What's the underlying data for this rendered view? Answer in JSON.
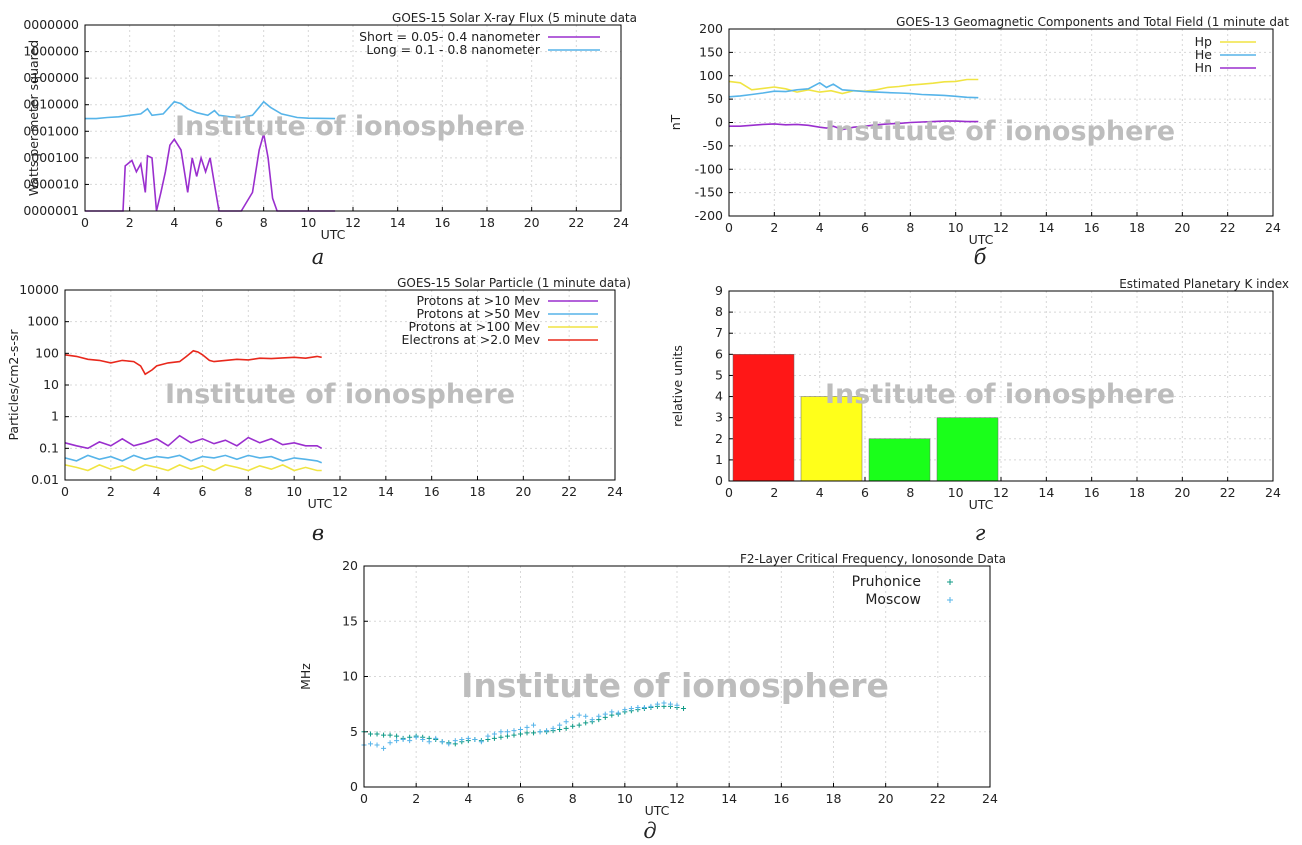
{
  "watermark": "Institute of ionosphere",
  "panels": [
    {
      "label": "а"
    },
    {
      "label": "б"
    },
    {
      "label": "в"
    },
    {
      "label": "г"
    },
    {
      "label": "д"
    }
  ],
  "chart_data": [
    {
      "id": "xray",
      "type": "line",
      "title": "GOES-15 Solar X-ray Flux (5 minute data",
      "xlabel": "UTC",
      "ylabel": "Watts per meter squared",
      "xlim": [
        0,
        24
      ],
      "xticks": [
        "0",
        "2",
        "4",
        "6",
        "8",
        "10",
        "12",
        "14",
        "16",
        "18",
        "20",
        "22",
        "24"
      ],
      "yscale": "log",
      "yticks": [
        "0000001",
        "0000010",
        "0000100",
        "0001000",
        "0010000",
        "0100000",
        "1000000",
        "0000000"
      ],
      "ylim": [
        1e-09,
        0.01
      ],
      "grid": true,
      "legend_position": "top-right",
      "series": [
        {
          "name": "Short = 0.05- 0.4 nanometer",
          "color": "#9a2fce",
          "x": [
            0,
            1.2,
            1.7,
            1.8,
            2.1,
            2.3,
            2.5,
            2.7,
            2.8,
            3.0,
            3.2,
            3.4,
            3.6,
            3.8,
            4.0,
            4.3,
            4.6,
            4.8,
            5.0,
            5.2,
            5.4,
            5.6,
            5.8,
            6.0,
            6.2,
            6.5,
            7.0,
            7.5,
            7.8,
            8.0,
            8.2,
            8.4,
            8.6,
            9.0,
            10,
            11.2
          ],
          "y": [
            1e-09,
            1e-09,
            1e-09,
            5e-08,
            8e-08,
            3e-08,
            6e-08,
            5e-09,
            1.2e-07,
            1e-07,
            1e-09,
            5e-09,
            3e-08,
            3e-07,
            5e-07,
            2e-07,
            5e-09,
            1e-07,
            2e-08,
            1e-07,
            3e-08,
            1e-07,
            1e-08,
            1e-09,
            1e-09,
            1e-09,
            1e-09,
            5e-09,
            2e-07,
            8e-07,
            1e-07,
            3e-09,
            1e-09,
            1e-09,
            1e-09,
            1e-09
          ]
        },
        {
          "name": "Long  =  0.1 - 0.8 nanometer",
          "color": "#56b4e9",
          "x": [
            0,
            0.5,
            1.0,
            1.5,
            2.0,
            2.5,
            2.8,
            3.0,
            3.5,
            4.0,
            4.3,
            4.6,
            5.0,
            5.5,
            5.8,
            6.0,
            6.5,
            7.0,
            7.5,
            7.8,
            8.0,
            8.3,
            8.8,
            9.5,
            10,
            11.2
          ],
          "y": [
            3e-06,
            3e-06,
            3.3e-06,
            3.5e-06,
            4e-06,
            4.5e-06,
            7e-06,
            4e-06,
            4.5e-06,
            1.3e-05,
            1.1e-05,
            7e-06,
            5e-06,
            4e-06,
            6e-06,
            4e-06,
            3.5e-06,
            3.3e-06,
            4e-06,
            8e-06,
            1.3e-05,
            8e-06,
            4.5e-06,
            3.3e-06,
            3.1e-06,
            3e-06
          ]
        }
      ]
    },
    {
      "id": "geomag",
      "type": "line",
      "title": "GOES-13 Geomagnetic Components and Total Field (1 minute dat",
      "xlabel": "UTC",
      "ylabel": "nT",
      "xlim": [
        0,
        24
      ],
      "ylim": [
        -200,
        200
      ],
      "xticks": [
        "0",
        "2",
        "4",
        "6",
        "8",
        "10",
        "12",
        "14",
        "16",
        "18",
        "20",
        "22",
        "24"
      ],
      "yticks": [
        "-200",
        "-150",
        "-100",
        "-50",
        "0",
        "50",
        "100",
        "150",
        "200"
      ],
      "grid": true,
      "legend_position": "top-right",
      "series": [
        {
          "name": "Hp",
          "color": "#f0e442",
          "x": [
            0,
            0.5,
            1,
            1.5,
            2,
            2.5,
            3,
            3.5,
            4,
            4.5,
            5,
            5.5,
            6,
            6.5,
            7,
            7.5,
            8,
            8.5,
            9,
            9.5,
            10,
            10.5,
            11
          ],
          "y": [
            88,
            85,
            70,
            73,
            76,
            72,
            65,
            70,
            65,
            68,
            62,
            68,
            67,
            70,
            75,
            77,
            80,
            82,
            84,
            87,
            88,
            92,
            92
          ]
        },
        {
          "name": "He",
          "color": "#56b4e9",
          "x": [
            0,
            0.5,
            1,
            1.5,
            2,
            2.5,
            3,
            3.5,
            4,
            4.3,
            4.6,
            5,
            5.5,
            6,
            6.5,
            7,
            7.5,
            8,
            8.5,
            9,
            9.5,
            10,
            10.5,
            11
          ],
          "y": [
            55,
            57,
            60,
            63,
            67,
            66,
            70,
            72,
            85,
            75,
            82,
            70,
            68,
            66,
            65,
            64,
            63,
            62,
            60,
            59,
            58,
            56,
            54,
            53
          ]
        },
        {
          "name": "Hn",
          "color": "#9a2fce",
          "x": [
            0,
            0.5,
            1,
            1.5,
            2,
            2.5,
            3,
            3.5,
            4,
            4.3,
            4.6,
            5,
            5.5,
            6,
            6.5,
            7,
            7.5,
            8,
            8.5,
            9,
            9.5,
            10,
            10.5,
            11
          ],
          "y": [
            -8,
            -8,
            -6,
            -4,
            -3,
            -5,
            -4,
            -6,
            -10,
            -12,
            -8,
            -15,
            -10,
            -8,
            -5,
            -3,
            -2,
            0,
            1,
            2,
            3,
            3,
            2,
            2
          ]
        }
      ]
    },
    {
      "id": "particles",
      "type": "line",
      "title": "GOES-15 Solar Particle (1 minute data)",
      "xlabel": "UTC",
      "ylabel": "Particles/cm2-s-sr",
      "xlim": [
        0,
        24
      ],
      "xticks": [
        "0",
        "2",
        "4",
        "6",
        "8",
        "10",
        "12",
        "14",
        "16",
        "18",
        "20",
        "22",
        "24"
      ],
      "yscale": "log",
      "yticks": [
        "0.01",
        "0.1",
        "1",
        "10",
        "100",
        "1000",
        "10000"
      ],
      "ylim": [
        0.01,
        10000
      ],
      "grid": true,
      "legend_position": "top-right",
      "series": [
        {
          "name": "Protons at >10 Mev",
          "color": "#9a2fce",
          "x": [
            0,
            0.5,
            1,
            1.5,
            2,
            2.5,
            3,
            3.5,
            4,
            4.5,
            5,
            5.5,
            6,
            6.5,
            7,
            7.5,
            8,
            8.5,
            9,
            9.5,
            10,
            10.5,
            11,
            11.2
          ],
          "y": [
            0.15,
            0.12,
            0.1,
            0.16,
            0.12,
            0.2,
            0.12,
            0.15,
            0.2,
            0.12,
            0.25,
            0.15,
            0.2,
            0.14,
            0.18,
            0.12,
            0.22,
            0.15,
            0.2,
            0.13,
            0.15,
            0.12,
            0.12,
            0.1
          ]
        },
        {
          "name": "Protons at >50 Mev",
          "color": "#56b4e9",
          "x": [
            0,
            0.5,
            1,
            1.5,
            2,
            2.5,
            3,
            3.5,
            4,
            4.5,
            5,
            5.5,
            6,
            6.5,
            7,
            7.5,
            8,
            8.5,
            9,
            9.5,
            10,
            10.5,
            11,
            11.2
          ],
          "y": [
            0.05,
            0.04,
            0.06,
            0.045,
            0.055,
            0.04,
            0.06,
            0.045,
            0.055,
            0.05,
            0.06,
            0.04,
            0.055,
            0.05,
            0.06,
            0.045,
            0.06,
            0.05,
            0.055,
            0.04,
            0.05,
            0.045,
            0.04,
            0.035
          ]
        },
        {
          "name": "Protons at >100 Mev",
          "color": "#f0e442",
          "x": [
            0,
            0.5,
            1,
            1.5,
            2,
            2.5,
            3,
            3.5,
            4,
            4.5,
            5,
            5.5,
            6,
            6.5,
            7,
            7.5,
            8,
            8.5,
            9,
            9.5,
            10,
            10.5,
            11,
            11.2
          ],
          "y": [
            0.03,
            0.025,
            0.02,
            0.03,
            0.022,
            0.028,
            0.02,
            0.03,
            0.025,
            0.02,
            0.03,
            0.022,
            0.028,
            0.02,
            0.03,
            0.025,
            0.02,
            0.028,
            0.022,
            0.03,
            0.02,
            0.025,
            0.02,
            0.02
          ]
        },
        {
          "name": "Electrons at >2.0 Mev",
          "color": "#e8281c",
          "x": [
            0,
            0.5,
            1,
            1.5,
            2,
            2.5,
            3,
            3.3,
            3.5,
            3.8,
            4,
            4.5,
            5,
            5.3,
            5.6,
            5.8,
            6,
            6.3,
            6.5,
            7,
            7.5,
            8,
            8.5,
            9,
            9.5,
            10,
            10.5,
            11,
            11.2
          ],
          "y": [
            90,
            80,
            65,
            60,
            50,
            60,
            55,
            40,
            22,
            30,
            40,
            50,
            55,
            80,
            120,
            110,
            90,
            60,
            55,
            60,
            65,
            62,
            70,
            68,
            72,
            75,
            70,
            80,
            75
          ]
        }
      ]
    },
    {
      "id": "kindex",
      "type": "bar",
      "title": "Estimated Planetary K index",
      "xlabel": "UTC",
      "ylabel": "relative units",
      "xlim": [
        0,
        24
      ],
      "ylim": [
        0,
        9
      ],
      "xticks": [
        "0",
        "2",
        "4",
        "6",
        "8",
        "10",
        "12",
        "14",
        "16",
        "18",
        "20",
        "22",
        "24"
      ],
      "yticks": [
        "0",
        "1",
        "2",
        "3",
        "4",
        "5",
        "6",
        "7",
        "8",
        "9"
      ],
      "grid": true,
      "bars": [
        {
          "x0": 0,
          "x1": 3,
          "value": 6,
          "color": "#ff1717"
        },
        {
          "x0": 3,
          "x1": 6,
          "value": 4,
          "color": "#ffff1a"
        },
        {
          "x0": 6,
          "x1": 9,
          "value": 2,
          "color": "#1aff1a"
        },
        {
          "x0": 9,
          "x1": 12,
          "value": 3,
          "color": "#1aff1a"
        }
      ]
    },
    {
      "id": "fof2",
      "type": "scatter",
      "title": "F2-Layer Critical Frequency, Ionosonde Data",
      "xlabel": "UTC",
      "ylabel": "MHz",
      "xlim": [
        0,
        24
      ],
      "ylim": [
        0,
        20
      ],
      "xticks": [
        "0",
        "2",
        "4",
        "6",
        "8",
        "10",
        "12",
        "14",
        "16",
        "18",
        "20",
        "22",
        "24"
      ],
      "yticks": [
        "0",
        "5",
        "10",
        "15",
        "20"
      ],
      "grid": true,
      "legend_position": "top-right",
      "series": [
        {
          "name": "Pruhonice",
          "color": "#0f9a86",
          "x": [
            0,
            0.25,
            0.5,
            0.75,
            1,
            1.25,
            1.5,
            1.75,
            2,
            2.25,
            2.5,
            2.75,
            3,
            3.25,
            3.5,
            3.75,
            4,
            4.25,
            4.5,
            4.75,
            5,
            5.25,
            5.5,
            5.75,
            6,
            6.25,
            6.5,
            6.75,
            7,
            7.25,
            7.5,
            7.75,
            8,
            8.25,
            8.5,
            8.75,
            9,
            9.25,
            9.5,
            9.75,
            10,
            10.25,
            10.5,
            10.75,
            11,
            11.25,
            11.5,
            11.75,
            12,
            12.25
          ],
          "y": [
            5.0,
            4.8,
            4.8,
            4.7,
            4.7,
            4.6,
            4.4,
            4.5,
            4.6,
            4.5,
            4.4,
            4.3,
            4.1,
            4.0,
            3.9,
            4.1,
            4.2,
            4.3,
            4.2,
            4.3,
            4.4,
            4.5,
            4.6,
            4.7,
            4.8,
            4.9,
            4.9,
            5.0,
            5.0,
            5.1,
            5.2,
            5.3,
            5.5,
            5.6,
            5.8,
            5.9,
            6.1,
            6.3,
            6.5,
            6.6,
            6.8,
            6.9,
            7.0,
            7.1,
            7.2,
            7.3,
            7.3,
            7.3,
            7.2,
            7.1
          ]
        },
        {
          "name": "Moscow",
          "color": "#56b4e9",
          "x": [
            0,
            0.25,
            0.5,
            0.75,
            1,
            1.25,
            1.5,
            1.75,
            2,
            2.25,
            2.5,
            2.75,
            3,
            3.25,
            3.5,
            3.75,
            4,
            4.25,
            4.5,
            4.75,
            5,
            5.25,
            5.5,
            5.75,
            6,
            6.25,
            6.5,
            6.75,
            7,
            7.25,
            7.5,
            7.75,
            8,
            8.25,
            8.5,
            8.75,
            9,
            9.25,
            9.5,
            9.75,
            10,
            10.25,
            10.5,
            10.75,
            11,
            11.25,
            11.5,
            11.75,
            12
          ],
          "y": [
            3.8,
            3.9,
            3.8,
            3.5,
            4.0,
            4.2,
            4.3,
            4.2,
            4.5,
            4.3,
            4.1,
            4.4,
            4.1,
            3.9,
            4.2,
            4.3,
            4.4,
            4.3,
            4.1,
            4.6,
            4.8,
            5.0,
            5.0,
            5.1,
            5.2,
            5.4,
            5.6,
            5.0,
            5.1,
            5.3,
            5.6,
            5.9,
            6.3,
            6.5,
            6.4,
            6.1,
            6.4,
            6.6,
            6.8,
            6.7,
            7.0,
            7.1,
            7.2,
            7.2,
            7.3,
            7.5,
            7.6,
            7.5,
            7.4
          ]
        }
      ]
    }
  ]
}
